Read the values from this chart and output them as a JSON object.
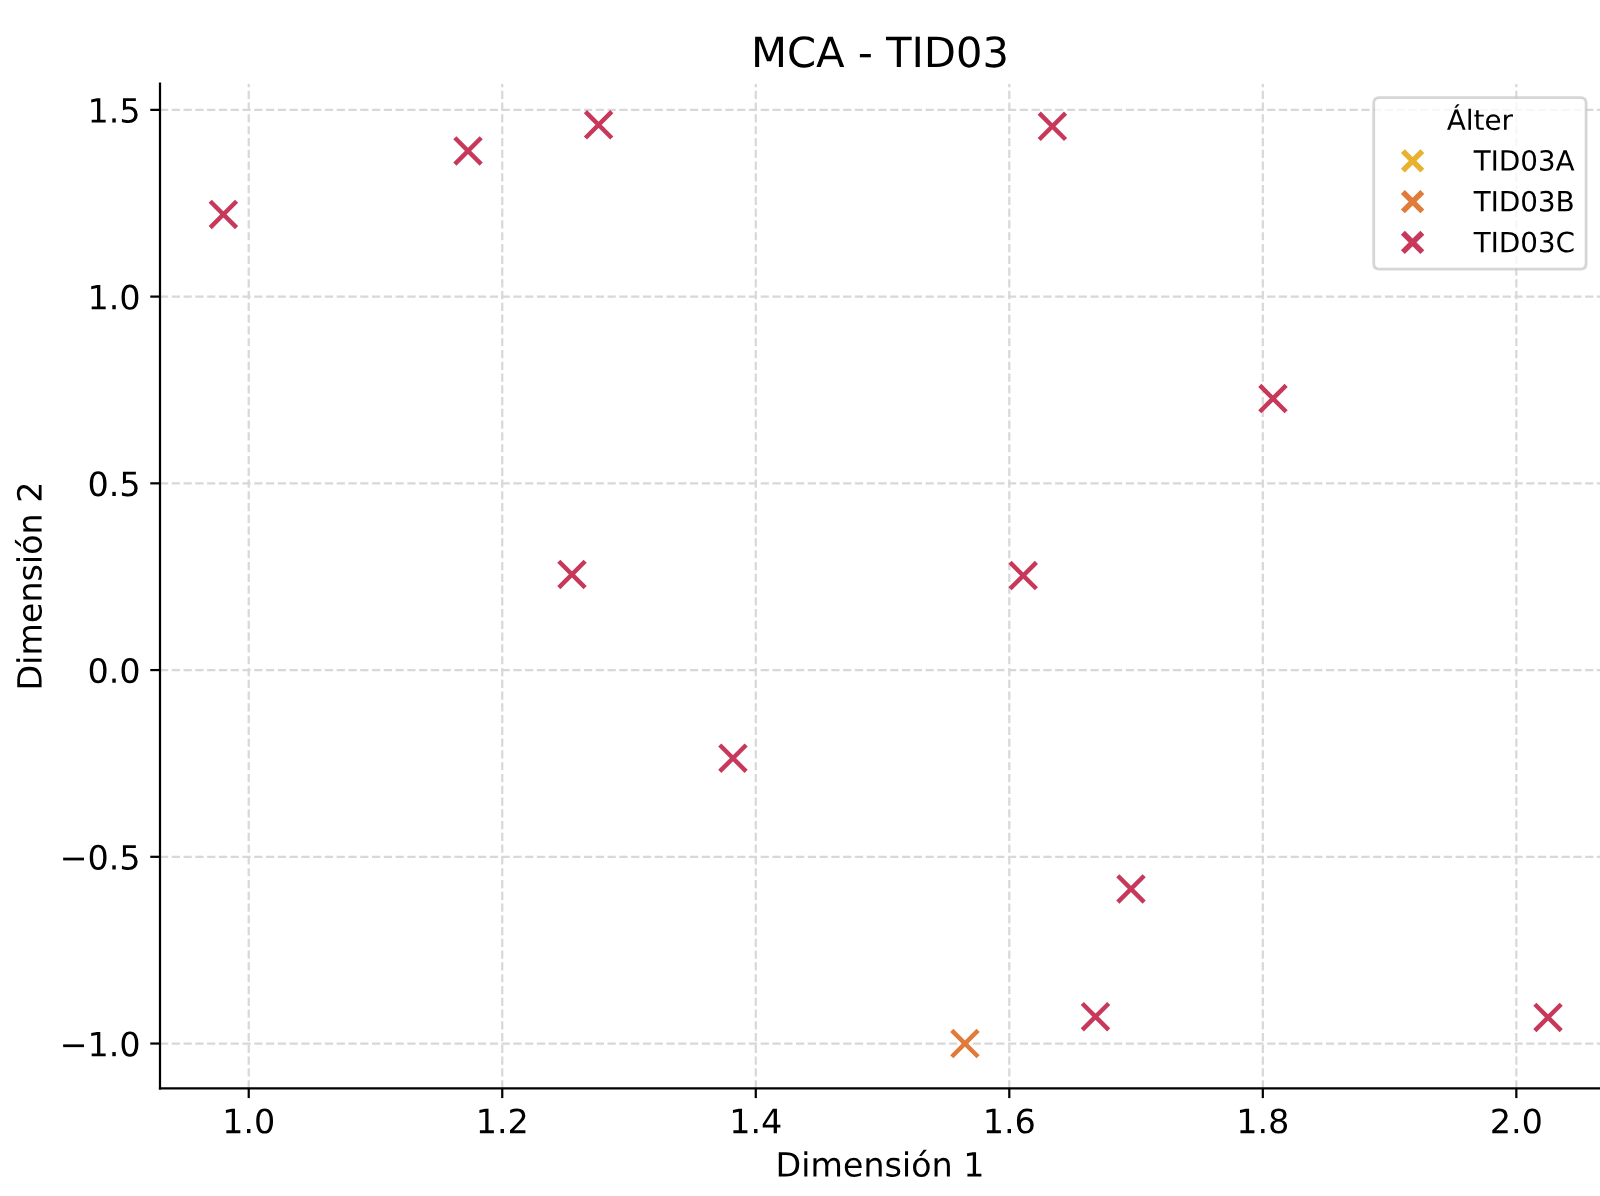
{
  "chart_data": {
    "type": "scatter",
    "title": "MCA - TID03",
    "xlabel": "Dimensión 1",
    "ylabel": "Dimensión 2",
    "legend_title": "Álter",
    "xlim": [
      0.93,
      2.066
    ],
    "ylim": [
      -1.12,
      1.57
    ],
    "xticks": [
      {
        "value": 1.0,
        "label": "1.0"
      },
      1.2,
      1.4,
      1.6,
      1.8,
      {
        "value": 2.0,
        "label": "2.0"
      }
    ],
    "yticks": [
      {
        "value": -1.0,
        "label": "−1.0"
      },
      {
        "value": -0.5,
        "label": "−0.5"
      },
      {
        "value": 0.0,
        "label": "0.0"
      },
      0.5,
      {
        "value": 1.0,
        "label": "1.0"
      },
      1.5
    ],
    "grid": true,
    "legend": "top right",
    "marker": "cross",
    "series": [
      {
        "name": "TID03A",
        "color": "#e8b130"
      },
      {
        "name": "TID03B",
        "color": "#e07b39",
        "x": [
          1.565
        ],
        "values": [
          -1.0
        ]
      },
      {
        "name": "TID03C",
        "color": "#c8385a",
        "x": [
          0.98,
          1.173,
          1.276,
          1.255,
          1.634,
          1.808,
          1.611,
          1.382,
          1.696,
          1.668,
          2.025
        ],
        "values": [
          1.22,
          1.39,
          1.46,
          0.256,
          1.456,
          0.727,
          0.253,
          -0.236,
          -0.586,
          -0.928,
          -0.93
        ]
      }
    ]
  }
}
